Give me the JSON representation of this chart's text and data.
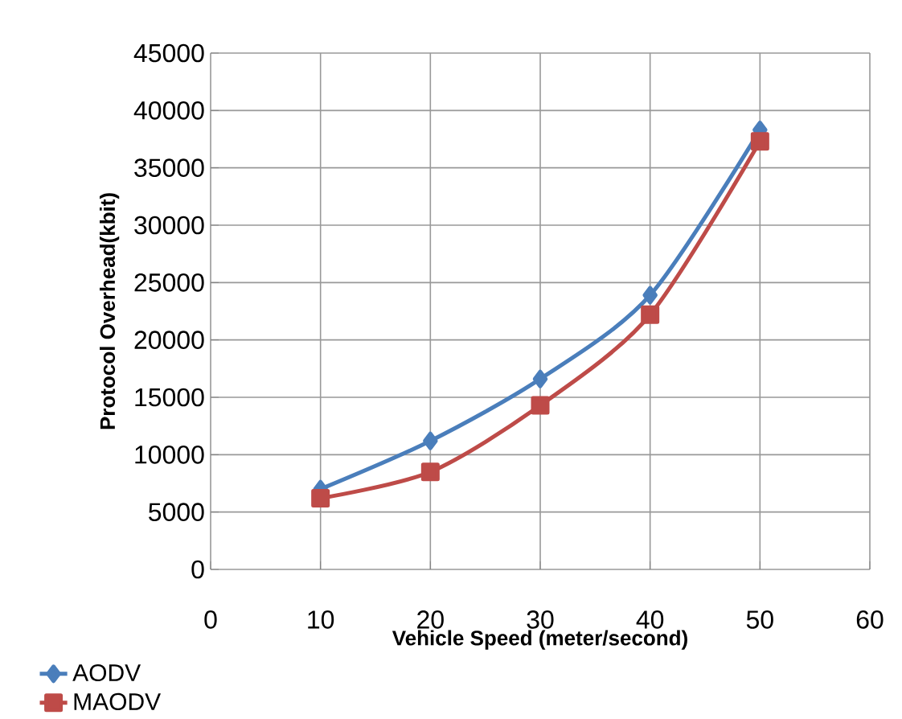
{
  "chart_data": {
    "type": "line",
    "xlabel": "Vehicle Speed (meter/second)",
    "ylabel": "Protocol Overhead(kbit)",
    "x": [
      10,
      20,
      30,
      40,
      50
    ],
    "series": [
      {
        "name": "AODV",
        "color": "#4a7ebb",
        "marker": "diamond",
        "values": [
          7000,
          11200,
          16600,
          23900,
          38300
        ]
      },
      {
        "name": "MAODV",
        "color": "#be4b48",
        "marker": "square",
        "values": [
          6200,
          8500,
          14300,
          22200,
          37300
        ]
      }
    ],
    "xlim": [
      0,
      60
    ],
    "xticks": [
      0,
      10,
      20,
      30,
      40,
      50,
      60
    ],
    "ylim": [
      0,
      45000
    ],
    "yticks": [
      0,
      5000,
      10000,
      15000,
      20000,
      25000,
      30000,
      35000,
      40000,
      45000
    ],
    "grid": true,
    "legend": "bottom left",
    "line_style": "solid"
  }
}
